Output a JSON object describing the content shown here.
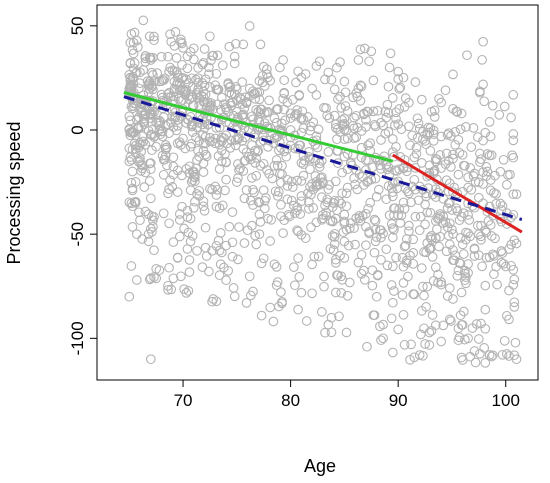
{
  "chart_data": {
    "type": "scatter",
    "title": "",
    "xlabel": "Age",
    "ylabel": "Processing speed",
    "xlim": [
      62,
      103
    ],
    "ylim": [
      -120,
      60
    ],
    "x_ticks": [
      70,
      80,
      90,
      100
    ],
    "y_ticks": [
      50,
      0,
      -50,
      -100
    ],
    "grid": false,
    "legend": "none",
    "point_style": "open circle",
    "point_color": "#b3b3b3",
    "point_count": 1500,
    "point_generation_seed": 20240513,
    "points": [
      [
        68.0,
        17.0
      ],
      [
        70.0,
        25.0
      ],
      [
        72.5,
        45.0
      ],
      [
        71.0,
        -20.0
      ],
      [
        74.0,
        10.0
      ],
      [
        77.0,
        -10.0
      ],
      [
        79.0,
        30.0
      ],
      [
        83.0,
        -25.0
      ],
      [
        86.0,
        -55.0
      ],
      [
        90.0,
        28.0
      ],
      [
        93.0,
        -10.0
      ],
      [
        95.5,
        -70.0
      ],
      [
        100.5,
        6.0
      ],
      [
        101.0,
        -110.0
      ],
      [
        67.0,
        -110.0
      ],
      [
        65.0,
        -80.0
      ],
      [
        96.5,
        -100.0
      ],
      [
        99.0,
        -52.0
      ],
      [
        92.0,
        -108.0
      ],
      [
        88.0,
        -80.0
      ]
    ],
    "series": [
      {
        "name": "",
        "type": "line",
        "style": "solid",
        "color": "#33cc33",
        "x": [
          64.5,
          89.5
        ],
        "y": [
          18.0,
          -15.0
        ]
      },
      {
        "name": "",
        "type": "line",
        "style": "solid",
        "color": "#dd2222",
        "x": [
          89.5,
          101.5
        ],
        "y": [
          -12.0,
          -49.0
        ]
      },
      {
        "name": "",
        "type": "line",
        "style": "dashed",
        "color": "#1a1a99",
        "x": [
          64.5,
          101.5
        ],
        "y": [
          16.0,
          -43.0
        ]
      }
    ]
  }
}
